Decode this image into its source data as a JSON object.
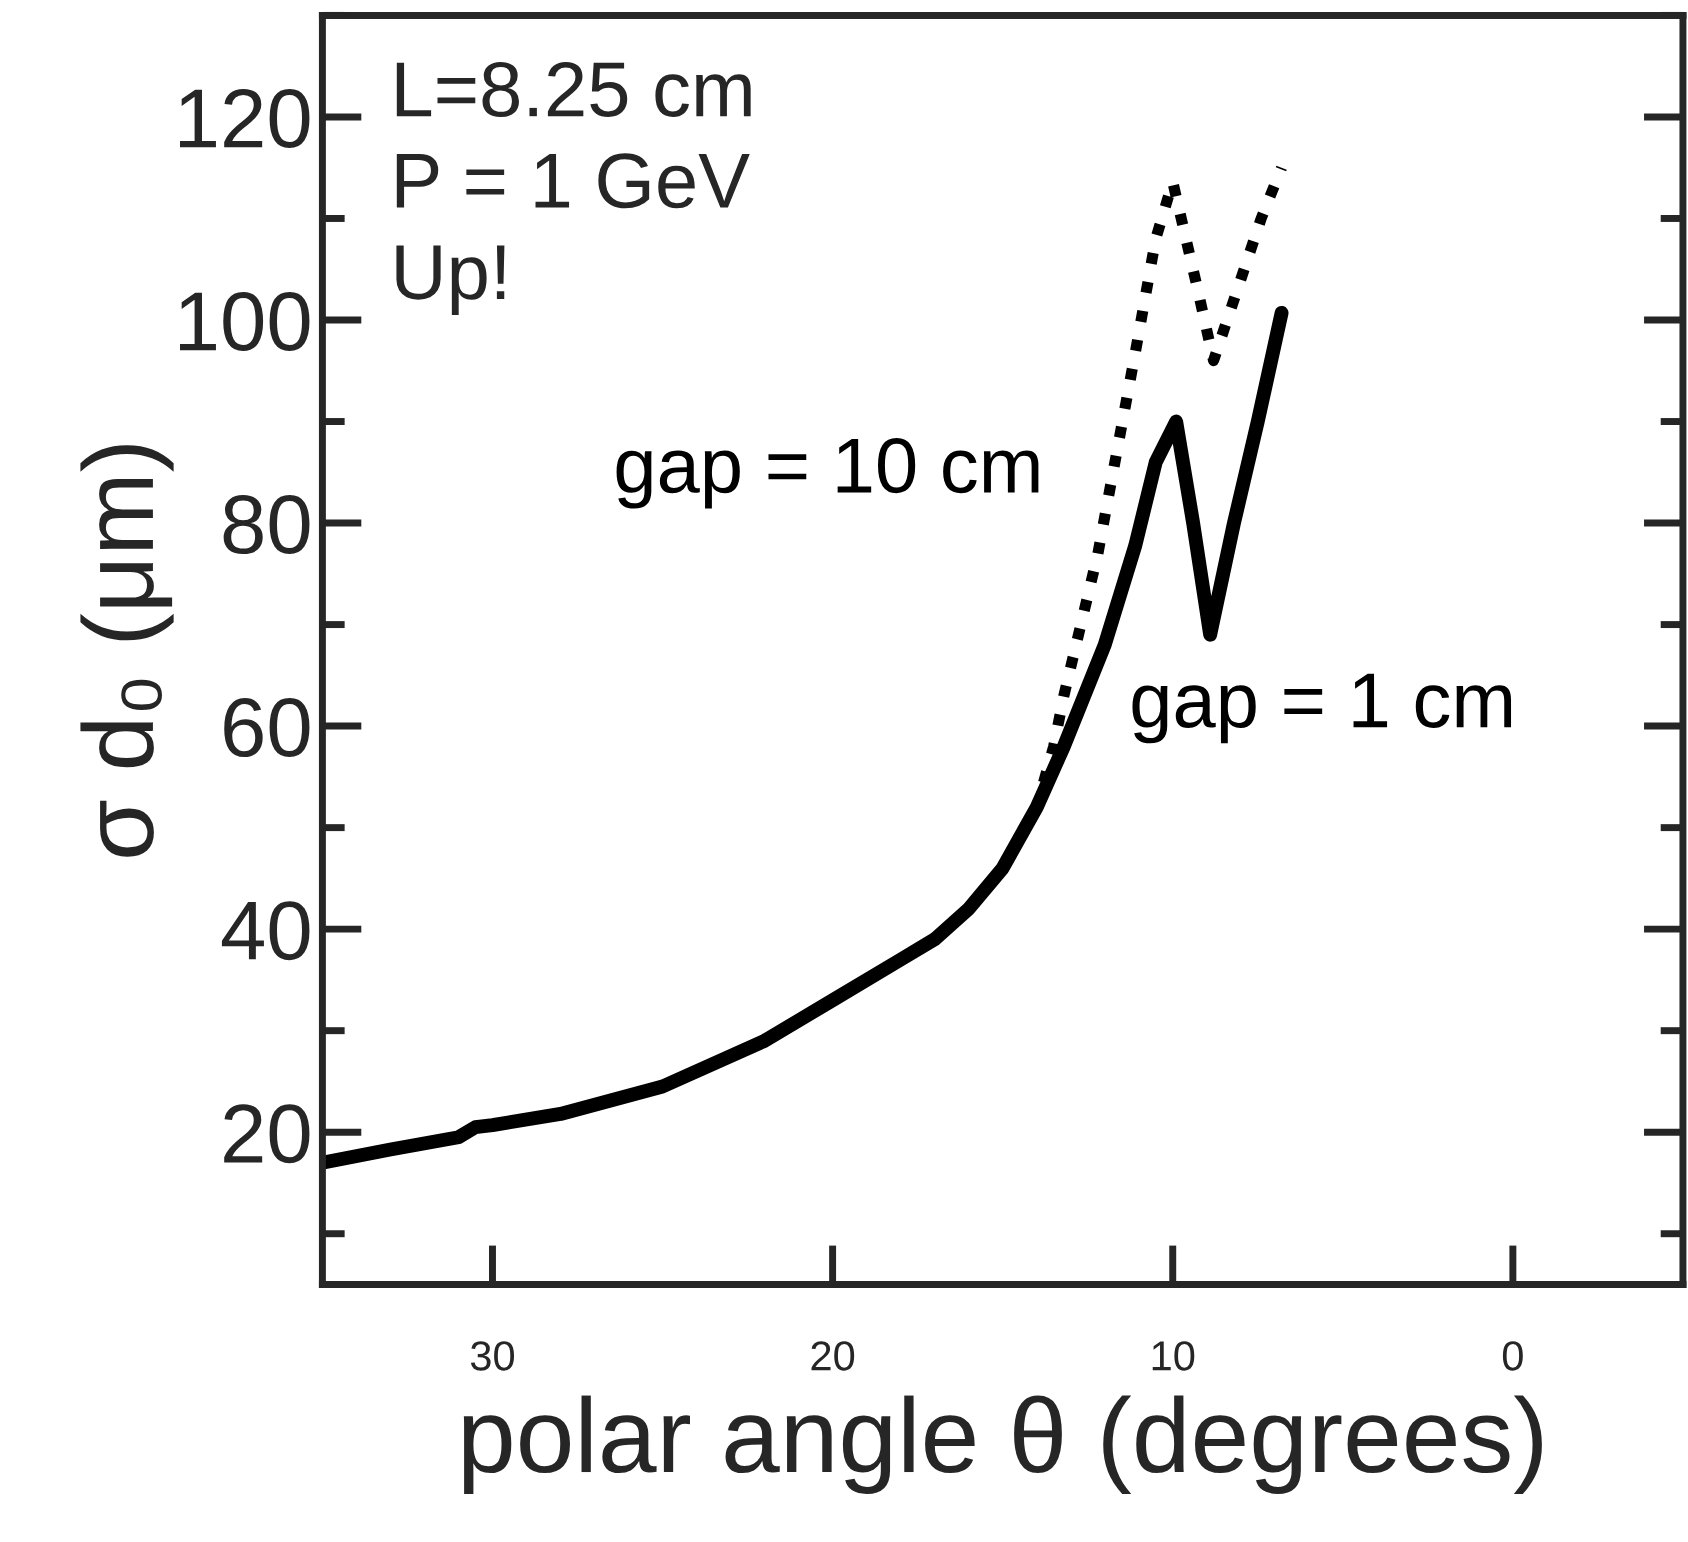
{
  "chart_data": {
    "type": "line",
    "xlabel": "polar angle θ (degrees)",
    "ylabel": "σ d₀ (μm)",
    "xlim": [
      35,
      -5
    ],
    "xticks": [
      30,
      20,
      10,
      0
    ],
    "ylim": [
      5,
      130
    ],
    "yticks": [
      20,
      40,
      60,
      80,
      100,
      120
    ],
    "grid": false,
    "legend": false,
    "marker": "none",
    "annotations": [
      "L=8.25 cm",
      "P = 1 GeV",
      "Up!"
    ],
    "series": [
      {
        "name": "gap = 10 cm",
        "color": "#000000",
        "line_style": "dotted",
        "x": [
          35,
          33,
          31,
          30.5,
          30,
          28,
          25,
          22,
          20,
          18,
          17,
          16,
          15,
          14,
          13.5,
          13.2,
          12.2,
          11.1,
          10.5,
          10,
          9.3,
          8.8,
          8,
          7.4,
          6.8
        ],
        "values": [
          17,
          18.3,
          19.5,
          20.5,
          20.7,
          21.8,
          24.5,
          29,
          33,
          37,
          39,
          42,
          46,
          52,
          58,
          63,
          77,
          96.8,
          108,
          113.6,
          103.5,
          96,
          104,
          110,
          115
        ]
      },
      {
        "name": "gap = 1 cm",
        "color": "#000000",
        "line_style": "solid",
        "x": [
          35,
          33,
          31,
          30.5,
          30,
          28,
          25,
          22,
          20,
          18,
          17,
          16,
          15,
          14,
          13.2,
          12,
          11.1,
          10.5,
          9.9,
          9.4,
          8.9,
          8.2,
          7.5,
          6.8
        ],
        "values": [
          17,
          18.3,
          19.5,
          20.5,
          20.7,
          21.8,
          24.5,
          29,
          33,
          37,
          39,
          42,
          46,
          52,
          58,
          68,
          77.8,
          86,
          90,
          80,
          69,
          80,
          90,
          100.7
        ]
      }
    ]
  }
}
